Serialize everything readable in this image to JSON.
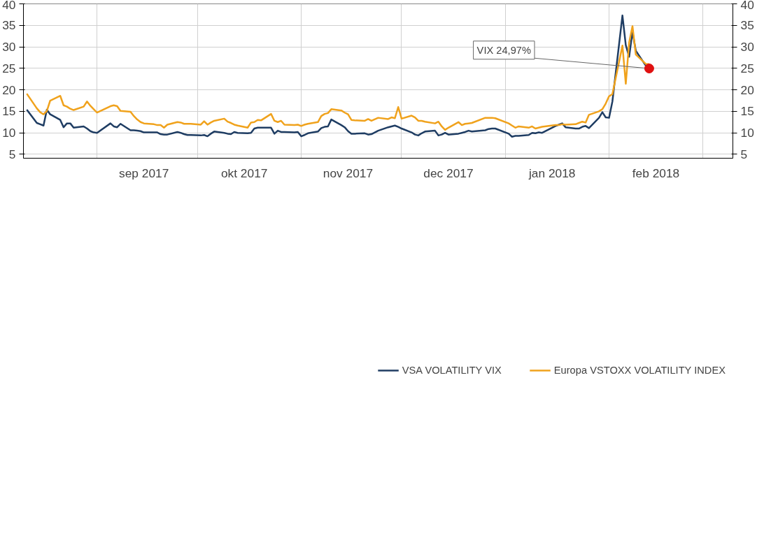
{
  "chart_data": {
    "type": "line",
    "x": [
      "2017-08-11",
      "2017-08-14",
      "2017-08-15",
      "2017-08-16",
      "2017-08-17",
      "2017-08-18",
      "2017-08-21",
      "2017-08-22",
      "2017-08-23",
      "2017-08-24",
      "2017-08-25",
      "2017-08-28",
      "2017-08-29",
      "2017-08-30",
      "2017-08-31",
      "2017-09-01",
      "2017-09-05",
      "2017-09-06",
      "2017-09-07",
      "2017-09-08",
      "2017-09-11",
      "2017-09-12",
      "2017-09-13",
      "2017-09-14",
      "2017-09-15",
      "2017-09-18",
      "2017-09-19",
      "2017-09-20",
      "2017-09-21",
      "2017-09-22",
      "2017-09-25",
      "2017-09-26",
      "2017-09-27",
      "2017-09-28",
      "2017-09-29",
      "2017-10-02",
      "2017-10-03",
      "2017-10-04",
      "2017-10-05",
      "2017-10-06",
      "2017-10-09",
      "2017-10-10",
      "2017-10-11",
      "2017-10-12",
      "2017-10-13",
      "2017-10-16",
      "2017-10-17",
      "2017-10-18",
      "2017-10-19",
      "2017-10-20",
      "2017-10-23",
      "2017-10-24",
      "2017-10-25",
      "2017-10-26",
      "2017-10-27",
      "2017-10-30",
      "2017-10-31",
      "2017-11-01",
      "2017-11-02",
      "2017-11-03",
      "2017-11-06",
      "2017-11-07",
      "2017-11-08",
      "2017-11-09",
      "2017-11-10",
      "2017-11-13",
      "2017-11-14",
      "2017-11-15",
      "2017-11-16",
      "2017-11-17",
      "2017-11-20",
      "2017-11-21",
      "2017-11-22",
      "2017-11-24",
      "2017-11-27",
      "2017-11-28",
      "2017-11-29",
      "2017-11-30",
      "2017-12-01",
      "2017-12-04",
      "2017-12-05",
      "2017-12-06",
      "2017-12-07",
      "2017-12-08",
      "2017-12-11",
      "2017-12-12",
      "2017-12-13",
      "2017-12-14",
      "2017-12-15",
      "2017-12-18",
      "2017-12-19",
      "2017-12-20",
      "2017-12-21",
      "2017-12-22",
      "2017-12-26",
      "2017-12-27",
      "2017-12-28",
      "2017-12-29",
      "2018-01-02",
      "2018-01-03",
      "2018-01-04",
      "2018-01-05",
      "2018-01-08",
      "2018-01-09",
      "2018-01-10",
      "2018-01-11",
      "2018-01-12",
      "2018-01-16",
      "2018-01-17",
      "2018-01-18",
      "2018-01-19",
      "2018-01-22",
      "2018-01-23",
      "2018-01-24",
      "2018-01-25",
      "2018-01-26",
      "2018-01-29",
      "2018-01-30",
      "2018-01-31",
      "2018-02-01",
      "2018-02-02",
      "2018-02-05",
      "2018-02-06",
      "2018-02-07",
      "2018-02-08",
      "2018-02-09",
      "2018-02-12",
      "2018-02-13"
    ],
    "series": [
      {
        "name": "VSA VOLATILITY VIX",
        "color": "#1f3d63",
        "values": [
          15.4,
          12.3,
          12.0,
          11.7,
          15.4,
          14.3,
          13.0,
          11.3,
          12.2,
          12.2,
          11.2,
          11.5,
          11.0,
          10.4,
          10.1,
          10.0,
          12.2,
          11.5,
          11.3,
          12.1,
          10.6,
          10.6,
          10.5,
          10.4,
          10.1,
          10.1,
          10.1,
          9.7,
          9.6,
          9.6,
          10.2,
          10.0,
          9.7,
          9.5,
          9.5,
          9.4,
          9.5,
          9.2,
          9.8,
          10.3,
          10.0,
          9.8,
          9.7,
          10.2,
          10.0,
          9.9,
          10.0,
          11.0,
          11.2,
          11.2,
          11.2,
          9.8,
          10.5,
          10.2,
          10.2,
          10.1,
          10.2,
          9.2,
          9.5,
          9.9,
          10.3,
          11.1,
          11.4,
          11.5,
          13.1,
          11.8,
          11.3,
          10.4,
          9.8,
          9.8,
          9.9,
          9.6,
          9.7,
          10.5,
          11.3,
          11.5,
          11.7,
          11.4,
          11.0,
          10.1,
          9.6,
          9.4,
          9.9,
          10.3,
          10.5,
          9.4,
          9.6,
          10.0,
          9.6,
          9.8,
          10.0,
          10.2,
          10.5,
          10.3,
          10.6,
          10.9,
          11.0,
          11.0,
          9.8,
          9.1,
          9.3,
          9.3,
          9.5,
          10.0,
          9.9,
          10.1,
          10.0,
          11.6,
          11.9,
          12.2,
          11.3,
          11.0,
          11.0,
          11.4,
          11.6,
          11.1,
          13.5,
          14.8,
          13.6,
          13.5,
          17.3,
          37.3,
          30.4,
          27.7,
          33.5,
          29.1,
          25.6,
          24.97
        ]
      },
      {
        "name": "Europa VSTOXX VOLATILITY INDEX",
        "color": "#f0a21c",
        "values": [
          19.1,
          15.7,
          14.8,
          14.3,
          15.1,
          17.5,
          18.6,
          16.4,
          16.1,
          15.6,
          15.3,
          16.1,
          17.3,
          16.3,
          15.5,
          14.7,
          16.2,
          16.4,
          16.2,
          15.1,
          14.9,
          13.9,
          13.1,
          12.5,
          12.2,
          12.0,
          11.8,
          11.8,
          11.2,
          11.9,
          12.5,
          12.4,
          12.1,
          12.1,
          12.1,
          11.9,
          12.7,
          11.9,
          12.4,
          12.8,
          13.3,
          12.6,
          12.3,
          11.9,
          11.7,
          11.2,
          12.4,
          12.5,
          13.0,
          12.9,
          14.4,
          12.8,
          12.5,
          12.8,
          11.9,
          11.8,
          11.9,
          11.6,
          11.9,
          12.1,
          12.5,
          13.9,
          14.4,
          14.6,
          15.5,
          15.2,
          14.7,
          14.3,
          13.0,
          12.9,
          12.8,
          13.2,
          12.8,
          13.5,
          13.2,
          13.6,
          13.4,
          16.0,
          13.3,
          14.0,
          13.6,
          12.8,
          12.8,
          12.6,
          12.2,
          12.6,
          11.5,
          10.7,
          11.2,
          12.5,
          11.8,
          12.1,
          12.2,
          12.3,
          13.5,
          13.5,
          13.5,
          13.4,
          12.2,
          11.7,
          11.2,
          11.5,
          11.2,
          11.5,
          11.0,
          11.2,
          11.4,
          11.8,
          11.8,
          12.0,
          11.9,
          12.0,
          12.3,
          12.6,
          12.4,
          14.2,
          15.0,
          15.5,
          16.8,
          18.5,
          19.0,
          30.3,
          21.4,
          31.0,
          34.8,
          28.2,
          26.0,
          26.0
        ]
      }
    ],
    "xlim": [
      "2017-08-10",
      "2018-03-10"
    ],
    "xticks": [
      {
        "value": "2017-09-01",
        "label": null
      },
      {
        "value": "2017-09-15",
        "label": "sep 2017"
      },
      {
        "value": "2017-10-01",
        "label": null
      },
      {
        "value": "2017-10-15",
        "label": "okt 2017"
      },
      {
        "value": "2017-11-01",
        "label": null
      },
      {
        "value": "2017-11-15",
        "label": "nov 2017"
      },
      {
        "value": "2017-12-01",
        "label": null
      },
      {
        "value": "2017-12-15",
        "label": "dec 2017"
      },
      {
        "value": "2018-01-01",
        "label": null
      },
      {
        "value": "2018-01-15",
        "label": "jan 2018"
      },
      {
        "value": "2018-02-01",
        "label": null
      },
      {
        "value": "2018-02-15",
        "label": "feb 2018"
      },
      {
        "value": "2018-03-01",
        "label": null
      }
    ],
    "ylim": [
      4.1,
      40
    ],
    "yticks": [
      5,
      10,
      15,
      20,
      25,
      30,
      35,
      40
    ],
    "y2lim": [
      4.1,
      40
    ],
    "y2ticks": [
      5,
      10,
      15,
      20,
      25,
      30,
      35,
      40
    ],
    "annotations": [
      {
        "text": "VIX 24,97%",
        "x": "2018-02-13",
        "y": 24.97
      }
    ],
    "grid": true,
    "legend": "bottom",
    "line_style": "solid",
    "marker": "none"
  }
}
